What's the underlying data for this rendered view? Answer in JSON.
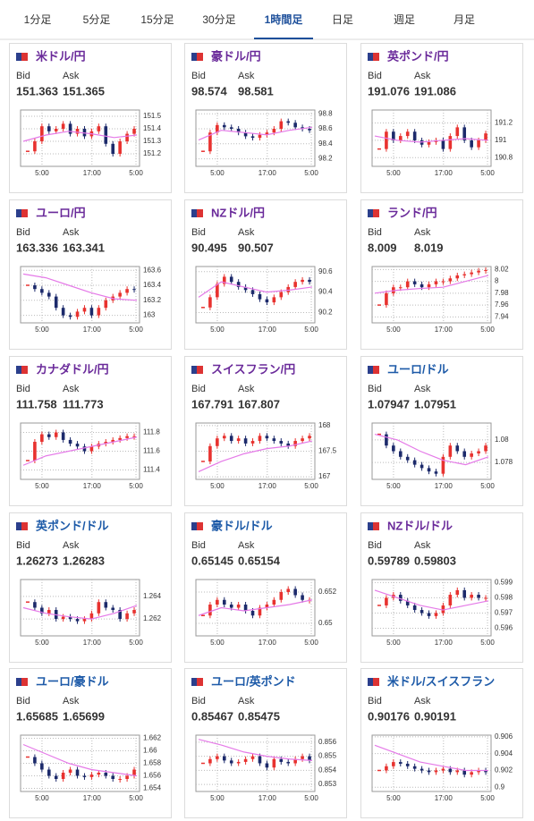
{
  "tabs": [
    {
      "label": "1分足"
    },
    {
      "label": "5分足"
    },
    {
      "label": "15分足"
    },
    {
      "label": "30分足"
    },
    {
      "label": "1時間足",
      "active": true
    },
    {
      "label": "日足"
    },
    {
      "label": "週足"
    },
    {
      "label": "月足"
    }
  ],
  "chart_style": {
    "up_color": "#e8322f",
    "down_color": "#1c2a6b",
    "ma_color": "#e57ae8",
    "grid": true
  },
  "cards": [
    {
      "title": "米ドル/円",
      "title_color": "#6a2a9a",
      "bid_label": "Bid",
      "ask_label": "Ask",
      "bid": 151.363,
      "ask": 151.365,
      "chart": {
        "type": "candlestick",
        "ylim": [
          151.1,
          151.55
        ],
        "yticks": [
          151.2,
          151.3,
          151.4,
          151.5
        ],
        "xticks": [
          "5:00",
          "17:00",
          "5:00"
        ],
        "closes": [
          151.22,
          151.3,
          151.42,
          151.38,
          151.4,
          151.44,
          151.36,
          151.4,
          151.34,
          151.38,
          151.42,
          151.28,
          151.2,
          151.3,
          151.36,
          151.4
        ],
        "ma": [
          151.3,
          151.35,
          151.38,
          151.36,
          151.33,
          151.35
        ]
      }
    },
    {
      "title": "豪ドル/円",
      "title_color": "#6a2a9a",
      "bid_label": "Bid",
      "ask_label": "Ask",
      "bid": 98.574,
      "ask": 98.581,
      "chart": {
        "type": "candlestick",
        "ylim": [
          98.1,
          98.85
        ],
        "yticks": [
          98.2,
          98.4,
          98.6,
          98.8
        ],
        "xticks": [
          "5:00",
          "17:00",
          "5:00"
        ],
        "closes": [
          98.3,
          98.55,
          98.65,
          98.62,
          98.6,
          98.55,
          98.5,
          98.48,
          98.52,
          98.55,
          98.6,
          98.7,
          98.68,
          98.62,
          98.6,
          98.58
        ],
        "ma": [
          98.45,
          98.58,
          98.55,
          98.52,
          98.58,
          98.62
        ]
      }
    },
    {
      "title": "英ポンド/円",
      "title_color": "#6a2a9a",
      "bid_label": "Bid",
      "ask_label": "Ask",
      "bid": 191.076,
      "ask": 191.086,
      "chart": {
        "type": "candlestick",
        "ylim": [
          190.7,
          191.35
        ],
        "yticks": [
          190.8,
          191,
          191.2
        ],
        "xticks": [
          "5:00",
          "17:00",
          "5:00"
        ],
        "closes": [
          190.9,
          191.1,
          191.0,
          191.05,
          191.1,
          191.0,
          190.95,
          190.98,
          191.0,
          190.9,
          191.05,
          191.15,
          191.0,
          190.92,
          191.0,
          191.08
        ],
        "ma": [
          191.05,
          191.0,
          190.98,
          191.0,
          191.02,
          191.0
        ]
      }
    },
    {
      "title": "ユーロ/円",
      "title_color": "#6a2a9a",
      "bid_label": "Bid",
      "ask_label": "Ask",
      "bid": 163.336,
      "ask": 163.341,
      "chart": {
        "type": "candlestick",
        "ylim": [
          162.9,
          163.65
        ],
        "yticks": [
          163,
          163.2,
          163.4,
          163.6
        ],
        "xticks": [
          "5:00",
          "17:00",
          "5:00"
        ],
        "closes": [
          163.4,
          163.35,
          163.3,
          163.25,
          163.1,
          163.0,
          162.98,
          163.05,
          163.1,
          163.0,
          163.1,
          163.2,
          163.25,
          163.3,
          163.35,
          163.34
        ],
        "ma": [
          163.55,
          163.5,
          163.4,
          163.3,
          163.22,
          163.2
        ]
      }
    },
    {
      "title": "NZドル/円",
      "title_color": "#6a2a9a",
      "bid_label": "Bid",
      "ask_label": "Ask",
      "bid": 90.495,
      "ask": 90.507,
      "chart": {
        "type": "candlestick",
        "ylim": [
          90.1,
          90.65
        ],
        "yticks": [
          90.2,
          90.4,
          90.6
        ],
        "xticks": [
          "5:00",
          "17:00",
          "5:00"
        ],
        "closes": [
          90.25,
          90.35,
          90.48,
          90.55,
          90.5,
          90.45,
          90.42,
          90.38,
          90.33,
          90.3,
          90.35,
          90.4,
          90.45,
          90.5,
          90.52,
          90.5
        ],
        "ma": [
          90.35,
          90.5,
          90.45,
          90.4,
          90.42,
          90.45
        ]
      }
    },
    {
      "title": "ランド/円",
      "title_color": "#6a2a9a",
      "bid_label": "Bid",
      "ask_label": "Ask",
      "bid": 8.009,
      "ask": 8.019,
      "chart": {
        "type": "candlestick",
        "ylim": [
          7.93,
          8.025
        ],
        "yticks": [
          7.94,
          7.96,
          7.98,
          8,
          8.02
        ],
        "xticks": [
          "5:00",
          "17:00",
          "5:00"
        ],
        "closes": [
          7.96,
          7.98,
          7.99,
          7.99,
          8.0,
          7.995,
          7.99,
          7.995,
          8.0,
          8.0,
          8.005,
          8.01,
          8.012,
          8.015,
          8.018,
          8.019
        ],
        "ma": [
          7.98,
          7.985,
          7.988,
          7.99,
          8.0,
          8.01
        ]
      }
    },
    {
      "title": "カナダドル/円",
      "title_color": "#6a2a9a",
      "bid_label": "Bid",
      "ask_label": "Ask",
      "bid": 111.758,
      "ask": 111.773,
      "chart": {
        "type": "candlestick",
        "ylim": [
          111.3,
          111.9
        ],
        "yticks": [
          111.4,
          111.6,
          111.8
        ],
        "xticks": [
          "5:00",
          "17:00",
          "5:00"
        ],
        "closes": [
          111.5,
          111.7,
          111.78,
          111.75,
          111.8,
          111.72,
          111.68,
          111.65,
          111.6,
          111.65,
          111.68,
          111.7,
          111.72,
          111.74,
          111.76,
          111.76
        ],
        "ma": [
          111.45,
          111.55,
          111.6,
          111.65,
          111.7,
          111.75
        ]
      }
    },
    {
      "title": "スイスフラン/円",
      "title_color": "#6a2a9a",
      "bid_label": "Bid",
      "ask_label": "Ask",
      "bid": 167.791,
      "ask": 167.807,
      "chart": {
        "type": "candlestick",
        "ylim": [
          166.95,
          168.05
        ],
        "yticks": [
          167,
          167.5,
          168
        ],
        "xticks": [
          "5:00",
          "17:00",
          "5:00"
        ],
        "closes": [
          167.3,
          167.6,
          167.75,
          167.8,
          167.7,
          167.75,
          167.65,
          167.7,
          167.8,
          167.75,
          167.7,
          167.65,
          167.6,
          167.7,
          167.75,
          167.8
        ],
        "ma": [
          167.1,
          167.3,
          167.45,
          167.55,
          167.6,
          167.7
        ]
      }
    },
    {
      "title": "ユーロ/ドル",
      "title_color": "#1d5aa8",
      "bid_label": "Bid",
      "ask_label": "Ask",
      "bid": 1.07947,
      "ask": 1.07951,
      "chart": {
        "type": "candlestick",
        "ylim": [
          1.0765,
          1.0815
        ],
        "yticks": [
          1.078,
          1.08
        ],
        "xticks": [
          "5:00",
          "17:00",
          "5:00"
        ],
        "closes": [
          1.0805,
          1.0795,
          1.079,
          1.0785,
          1.0782,
          1.0778,
          1.0775,
          1.0772,
          1.077,
          1.0785,
          1.0795,
          1.079,
          1.0785,
          1.0788,
          1.079,
          1.0795
        ],
        "ma": [
          1.0805,
          1.08,
          1.079,
          1.0782,
          1.0778,
          1.0785
        ]
      }
    },
    {
      "title": "英ポンド/ドル",
      "title_color": "#1d5aa8",
      "bid_label": "Bid",
      "ask_label": "Ask",
      "bid": 1.26273,
      "ask": 1.26283,
      "chart": {
        "type": "candlestick",
        "ylim": [
          1.2605,
          1.2655
        ],
        "yticks": [
          1.262,
          1.264
        ],
        "xticks": [
          "5:00",
          "17:00",
          "5:00"
        ],
        "closes": [
          1.2635,
          1.263,
          1.2625,
          1.2628,
          1.262,
          1.2622,
          1.262,
          1.2618,
          1.262,
          1.2625,
          1.2635,
          1.263,
          1.2628,
          1.262,
          1.2625,
          1.2628
        ],
        "ma": [
          1.263,
          1.2625,
          1.2622,
          1.262,
          1.2625,
          1.2632
        ]
      }
    },
    {
      "title": "豪ドル/ドル",
      "title_color": "#1d5aa8",
      "bid_label": "Bid",
      "ask_label": "Ask",
      "bid": 0.65145,
      "ask": 0.65154,
      "chart": {
        "type": "candlestick",
        "ylim": [
          0.6492,
          0.6528
        ],
        "yticks": [
          0.65,
          0.652
        ],
        "xticks": [
          "5:00",
          "17:00",
          "5:00"
        ],
        "closes": [
          0.6505,
          0.6512,
          0.6515,
          0.6512,
          0.651,
          0.6512,
          0.6508,
          0.6505,
          0.651,
          0.6512,
          0.6515,
          0.652,
          0.6522,
          0.6518,
          0.6515,
          0.6515
        ],
        "ma": [
          0.6505,
          0.651,
          0.6508,
          0.651,
          0.6512,
          0.6515
        ]
      }
    },
    {
      "title": "NZドル/ドル",
      "title_color": "#6a2a9a",
      "bid_label": "Bid",
      "ask_label": "Ask",
      "bid": 0.59789,
      "ask": 0.59803,
      "chart": {
        "type": "candlestick",
        "ylim": [
          0.5955,
          0.5992
        ],
        "yticks": [
          0.596,
          0.597,
          0.598,
          0.599
        ],
        "xticks": [
          "5:00",
          "17:00",
          "5:00"
        ],
        "closes": [
          0.5975,
          0.598,
          0.5982,
          0.5978,
          0.5975,
          0.5972,
          0.597,
          0.5968,
          0.597,
          0.5975,
          0.5982,
          0.5985,
          0.598,
          0.5982,
          0.598,
          0.598
        ],
        "ma": [
          0.5985,
          0.598,
          0.5975,
          0.5972,
          0.5975,
          0.5978
        ]
      }
    },
    {
      "title": "ユーロ/豪ドル",
      "title_color": "#1d5aa8",
      "bid_label": "Bid",
      "ask_label": "Ask",
      "bid": 1.65685,
      "ask": 1.65699,
      "chart": {
        "type": "candlestick",
        "ylim": [
          1.6535,
          1.6625
        ],
        "yticks": [
          1.654,
          1.656,
          1.658,
          1.66,
          1.662
        ],
        "xticks": [
          "5:00",
          "17:00",
          "5:00"
        ],
        "closes": [
          1.659,
          1.658,
          1.657,
          1.656,
          1.6555,
          1.6565,
          1.657,
          1.656,
          1.6558,
          1.6562,
          1.6565,
          1.656,
          1.6555,
          1.6555,
          1.656,
          1.657
        ],
        "ma": [
          1.661,
          1.6595,
          1.658,
          1.657,
          1.6565,
          1.656
        ]
      }
    },
    {
      "title": "ユーロ/英ポンド",
      "title_color": "#1d5aa8",
      "bid_label": "Bid",
      "ask_label": "Ask",
      "bid": 0.85467,
      "ask": 0.85475,
      "chart": {
        "type": "candlestick",
        "ylim": [
          0.8525,
          0.8565
        ],
        "yticks": [
          0.853,
          0.854,
          0.855,
          0.856
        ],
        "xticks": [
          "5:00",
          "17:00",
          "5:00"
        ],
        "closes": [
          0.8545,
          0.8548,
          0.855,
          0.8547,
          0.8545,
          0.8546,
          0.8548,
          0.855,
          0.8545,
          0.8542,
          0.8548,
          0.8546,
          0.8545,
          0.8548,
          0.855,
          0.8547
        ],
        "ma": [
          0.8562,
          0.8558,
          0.8553,
          0.855,
          0.8548,
          0.8547
        ]
      }
    },
    {
      "title": "米ドル/スイスフラン",
      "title_color": "#1d5aa8",
      "bid_label": "Bid",
      "ask_label": "Ask",
      "bid": 0.90176,
      "ask": 0.90191,
      "chart": {
        "type": "candlestick",
        "ylim": [
          0.8995,
          0.9062
        ],
        "yticks": [
          0.9,
          0.902,
          0.904,
          0.906
        ],
        "xticks": [
          "5:00",
          "17:00",
          "5:00"
        ],
        "closes": [
          0.902,
          0.9025,
          0.903,
          0.9028,
          0.9025,
          0.9022,
          0.902,
          0.9018,
          0.902,
          0.9022,
          0.9018,
          0.902,
          0.9015,
          0.9018,
          0.902,
          0.9018
        ],
        "ma": [
          0.905,
          0.904,
          0.903,
          0.9025,
          0.902,
          0.902
        ]
      }
    }
  ]
}
